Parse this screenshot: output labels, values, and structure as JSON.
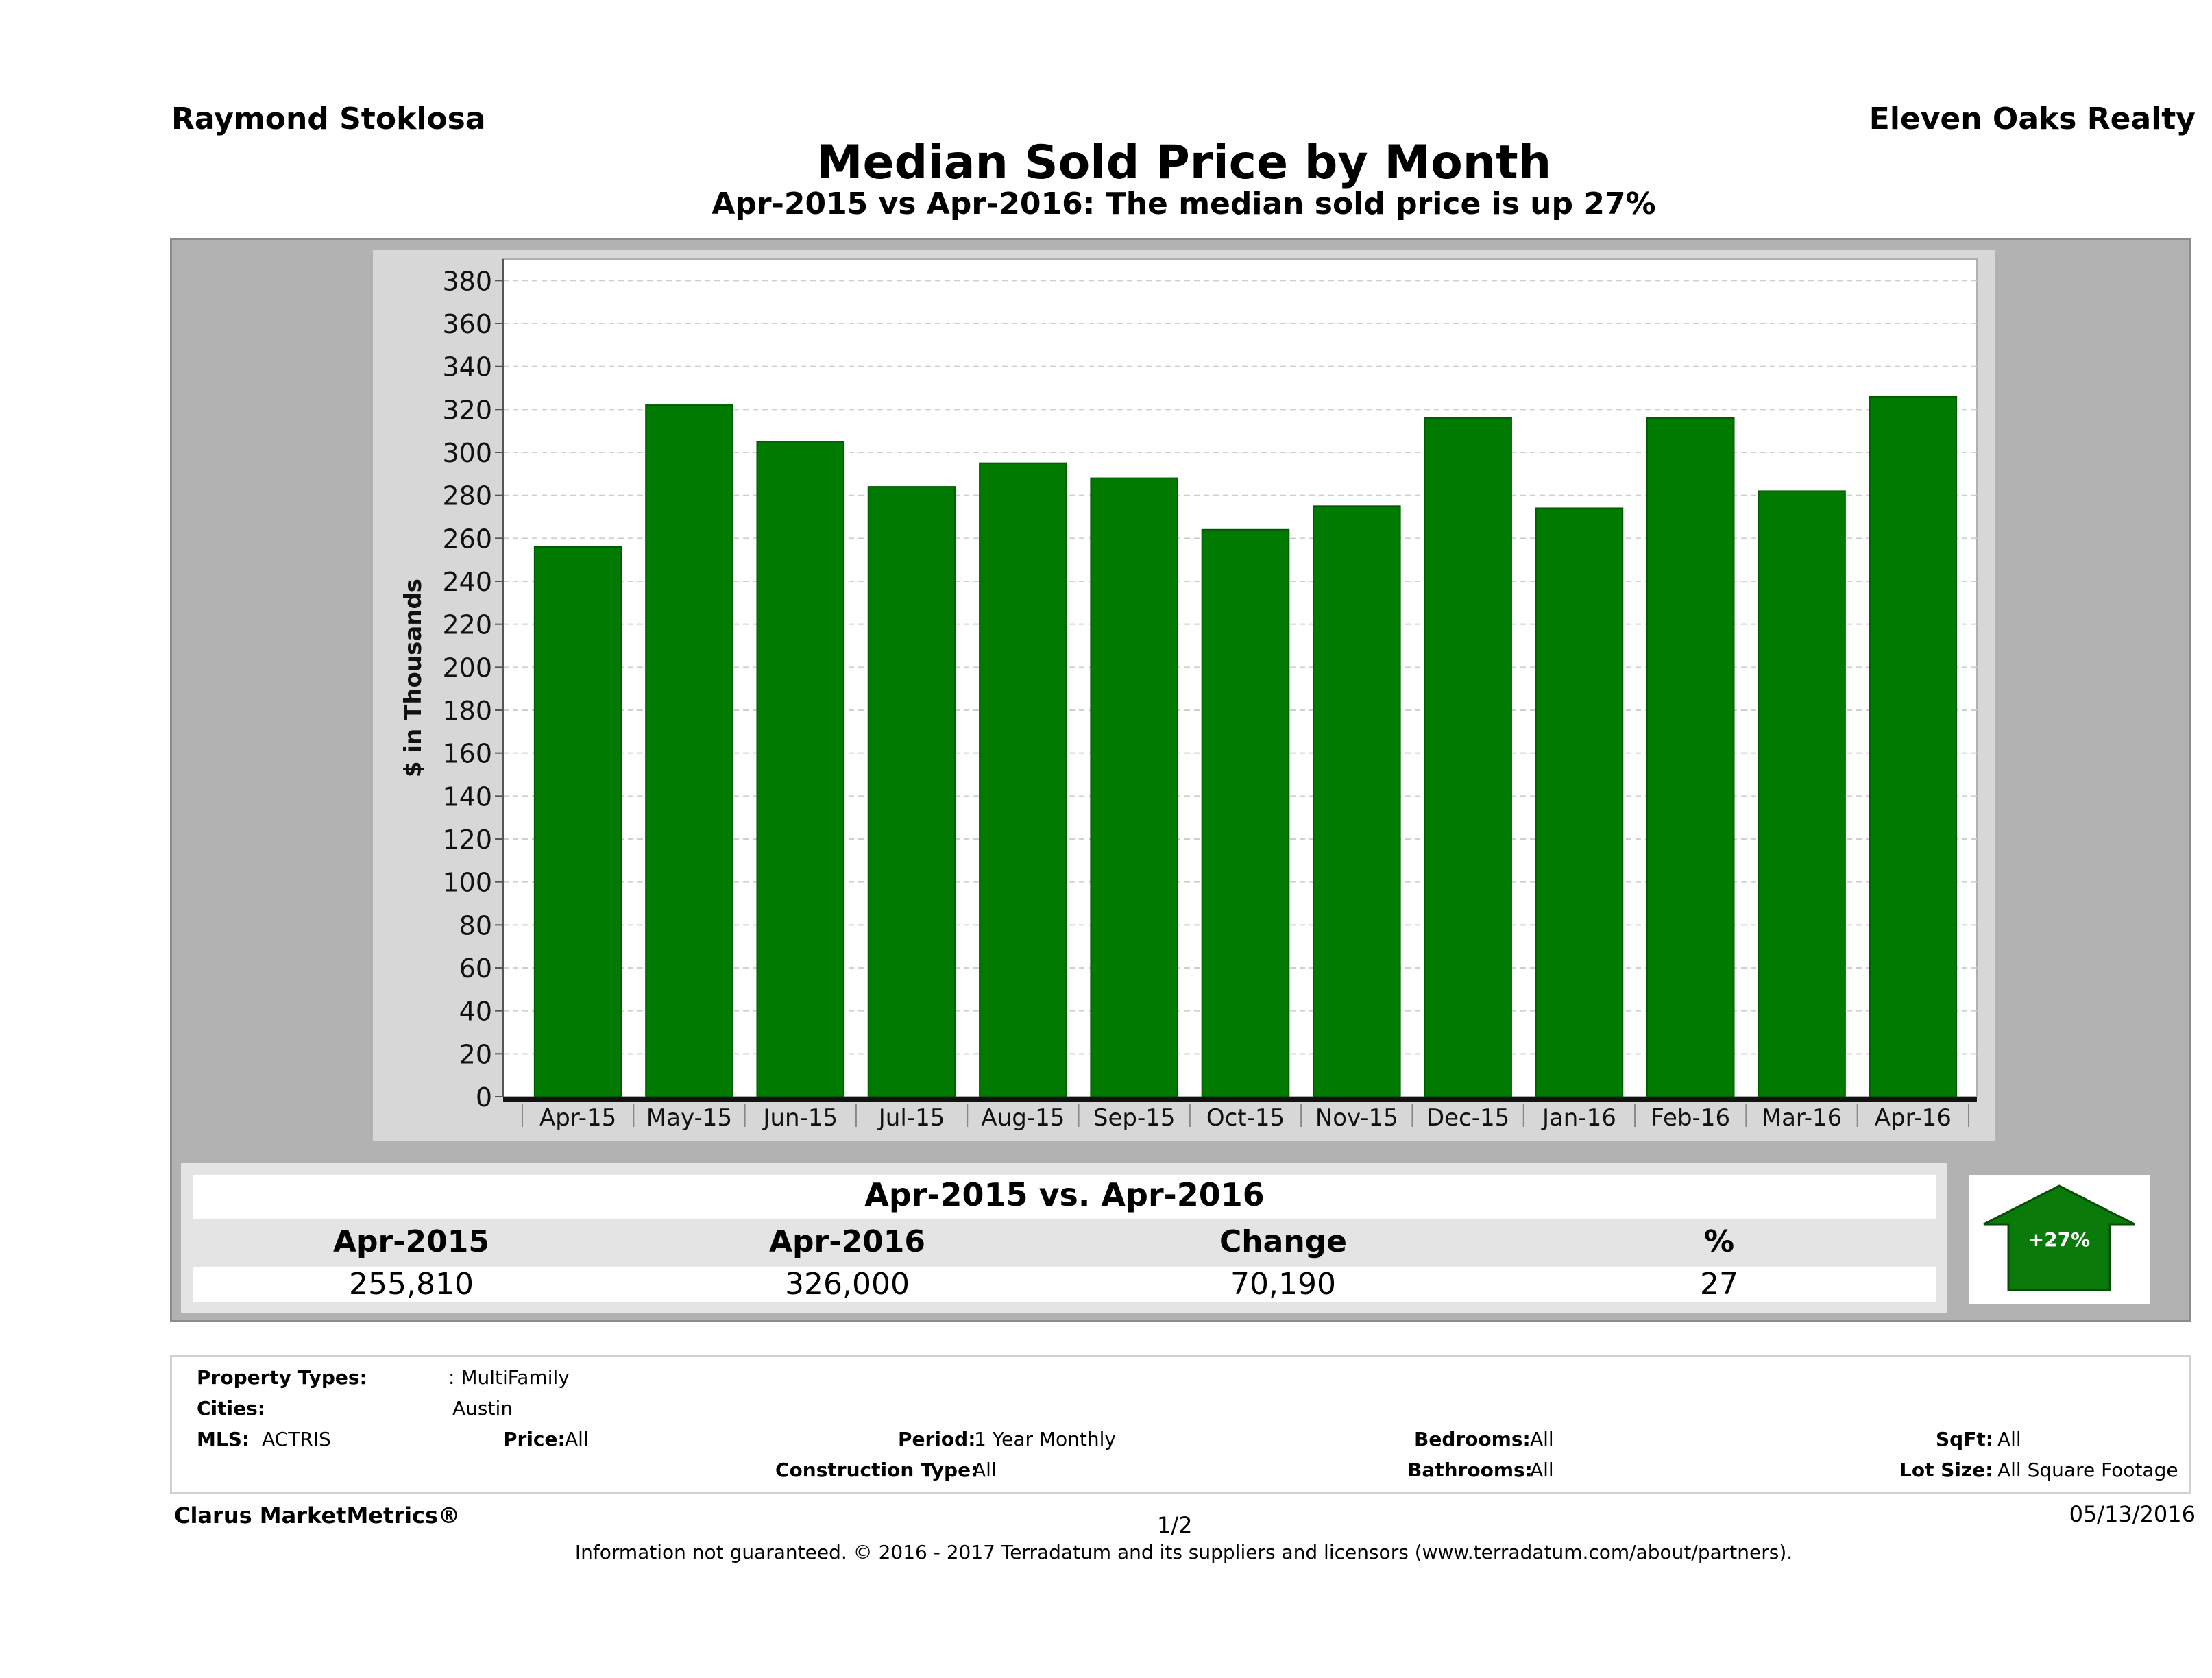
{
  "header": {
    "agent": "Raymond Stoklosa",
    "company": "Eleven Oaks Realty",
    "title": "Median Sold Price by Month",
    "subtitle": "Apr-2015 vs Apr-2016: The median sold price is up 27%"
  },
  "chart_data": {
    "type": "bar",
    "title": "Median Sold Price by Month",
    "ylabel": "$ in Thousands",
    "xlabel": "",
    "categories": [
      "Apr-15",
      "May-15",
      "Jun-15",
      "Jul-15",
      "Aug-15",
      "Sep-15",
      "Oct-15",
      "Nov-15",
      "Dec-15",
      "Jan-16",
      "Feb-16",
      "Mar-16",
      "Apr-16"
    ],
    "values": [
      256,
      322,
      305,
      284,
      295,
      288,
      264,
      275,
      316,
      274,
      316,
      282,
      326
    ],
    "ylim": [
      0,
      390
    ],
    "yticks": [
      0,
      20,
      40,
      60,
      80,
      100,
      120,
      140,
      160,
      180,
      200,
      220,
      240,
      260,
      280,
      300,
      320,
      340,
      360,
      380
    ],
    "grid": true,
    "bar_color": "#007a00"
  },
  "summary": {
    "title": "Apr-2015 vs. Apr-2016",
    "headers": [
      "Apr-2015",
      "Apr-2016",
      "Change",
      "%"
    ],
    "values": [
      "255,810",
      "326,000",
      "70,190",
      "27"
    ],
    "badge": "+27%",
    "badge_icon": "up-arrow-icon",
    "badge_color": "#0a7a0a"
  },
  "filters": {
    "property_types_label": "Property Types:",
    "property_types_value": ": MultiFamily",
    "cities_label": "Cities:",
    "cities_value": "Austin",
    "mls_label": "MLS:",
    "mls_value": "ACTRIS",
    "price_label": "Price:",
    "price_value": "All",
    "period_label": "Period:",
    "period_value": "1 Year Monthly",
    "construction_label": "Construction Type:",
    "construction_value": "All",
    "bedrooms_label": "Bedrooms:",
    "bedrooms_value": "All",
    "bathrooms_label": "Bathrooms:",
    "bathrooms_value": "All",
    "sqft_label": "SqFt:",
    "sqft_value": "All",
    "lotsize_label": "Lot Size:",
    "lotsize_value": "All Square Footage"
  },
  "footer": {
    "brand": "Clarus MarketMetrics®",
    "page": "1/2",
    "date": "05/13/2016",
    "note": "Information not guaranteed. © 2016 - 2017 Terradatum and its suppliers and licensors (www.terradatum.com/about/partners)."
  }
}
